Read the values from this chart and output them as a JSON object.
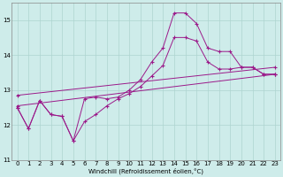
{
  "title": "",
  "xlabel": "Windchill (Refroidissement éolien,°C)",
  "ylabel": "",
  "xlim": [
    -0.5,
    23.5
  ],
  "ylim": [
    11,
    15.5
  ],
  "yticks": [
    11,
    12,
    13,
    14,
    15
  ],
  "xticks": [
    0,
    1,
    2,
    3,
    4,
    5,
    6,
    7,
    8,
    9,
    10,
    11,
    12,
    13,
    14,
    15,
    16,
    17,
    18,
    19,
    20,
    21,
    22,
    23
  ],
  "bg_color": "#ceecea",
  "grid_color": "#aed4d0",
  "line_color": "#9b1a8a",
  "series": [
    {
      "x": [
        0,
        1,
        2,
        3,
        4,
        5,
        6,
        7,
        8,
        9,
        10,
        11,
        12,
        13,
        14,
        15,
        16,
        17,
        18,
        19,
        20,
        21,
        22,
        23
      ],
      "y": [
        12.5,
        11.9,
        12.7,
        12.3,
        12.25,
        11.55,
        12.1,
        12.3,
        12.55,
        12.75,
        12.9,
        13.1,
        13.4,
        13.7,
        14.5,
        14.5,
        14.4,
        13.8,
        13.6,
        13.6,
        13.65,
        13.65,
        13.45,
        13.45
      ]
    },
    {
      "x": [
        0,
        1,
        2,
        3,
        4,
        5,
        6,
        7,
        8,
        9,
        10,
        11,
        12,
        13,
        14,
        15,
        16,
        17,
        18,
        19,
        20,
        21,
        22,
        23
      ],
      "y": [
        12.5,
        11.9,
        12.7,
        12.3,
        12.25,
        11.55,
        12.75,
        12.8,
        12.75,
        12.8,
        13.0,
        13.3,
        13.8,
        14.2,
        15.2,
        15.2,
        14.9,
        14.2,
        14.1,
        14.1,
        13.65,
        13.65,
        13.45,
        13.45
      ]
    },
    {
      "x": [
        0,
        23
      ],
      "y": [
        12.55,
        13.45
      ]
    },
    {
      "x": [
        0,
        23
      ],
      "y": [
        12.85,
        13.65
      ]
    }
  ],
  "figsize": [
    3.2,
    2.0
  ],
  "dpi": 100
}
